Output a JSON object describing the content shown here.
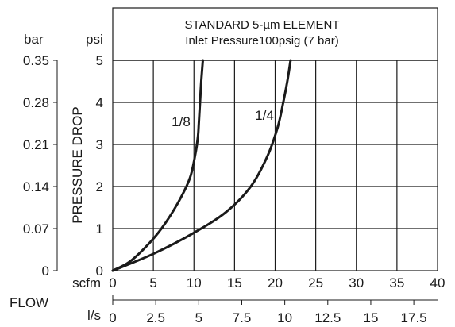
{
  "chart_data": {
    "type": "line",
    "title": "STANDARD 5-µm ELEMENT",
    "subtitle": "Inlet Pressure100psig (7 bar)",
    "ylabel": "PRESSURE DROP",
    "xlabel": "FLOW",
    "grid": true,
    "x_primary": {
      "unit": "scfm",
      "range": [
        0,
        40
      ],
      "ticks": [
        0,
        5,
        10,
        15,
        20,
        25,
        30,
        35,
        40
      ],
      "tick_labels": [
        "0",
        "5",
        "10",
        "15",
        "20",
        "25",
        "30",
        "35",
        "40"
      ]
    },
    "x_secondary": {
      "unit": "l/s",
      "range": [
        0,
        18.88
      ],
      "ticks": [
        0,
        2.5,
        5,
        7.5,
        10,
        12.5,
        15,
        17.5
      ],
      "tick_labels": [
        "0",
        "2.5",
        "5",
        "7.5",
        "10",
        "12.5",
        "15",
        "17.5"
      ]
    },
    "y_primary": {
      "unit": "psi",
      "range": [
        0,
        5
      ],
      "ticks": [
        0,
        1,
        2,
        3,
        4,
        5
      ],
      "tick_labels": [
        "0",
        "1",
        "2",
        "3",
        "4",
        "5"
      ]
    },
    "y_secondary": {
      "unit": "bar",
      "range": [
        0,
        0.35
      ],
      "ticks": [
        0,
        0.07,
        0.14,
        0.21,
        0.28,
        0.35
      ],
      "tick_labels": [
        "0",
        "0.07",
        "0.14",
        "0.21",
        "0.28",
        "0.35"
      ]
    },
    "series": [
      {
        "name": "1/8",
        "x": [
          0,
          2,
          4,
          6,
          8,
          9.5,
          10.2,
          10.5,
          10.6,
          10.75,
          10.9,
          11.1
        ],
        "y": [
          0,
          0.2,
          0.55,
          1.0,
          1.6,
          2.2,
          2.8,
          3.2,
          3.5,
          4.0,
          4.5,
          5.0
        ]
      },
      {
        "name": "1/4",
        "x": [
          0,
          5,
          10,
          14,
          17,
          19,
          20.3,
          21,
          21.5,
          21.9
        ],
        "y": [
          0,
          0.4,
          0.9,
          1.4,
          2.0,
          2.7,
          3.4,
          4.0,
          4.5,
          5.0
        ]
      }
    ]
  }
}
